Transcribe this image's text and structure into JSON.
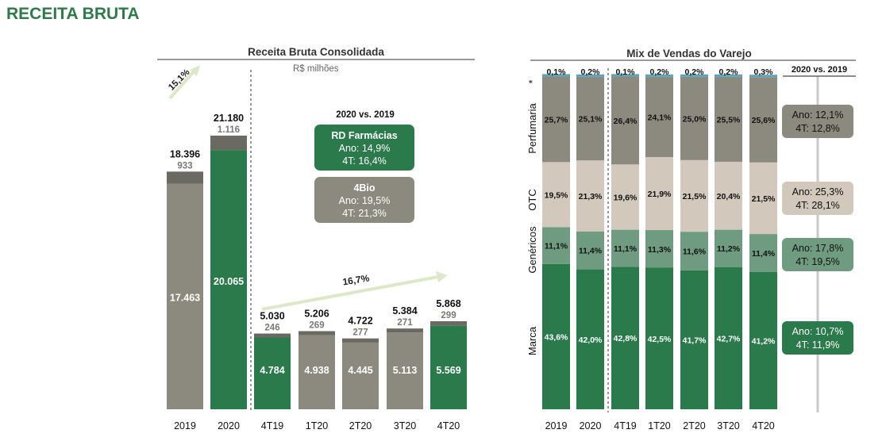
{
  "page": {
    "title": "RECEITA BRUTA"
  },
  "colors": {
    "dark_green": "#2a7a4c",
    "mid_green": "#6f9c80",
    "gray": "#8c8a7f",
    "dark_gray": "#6b6a62",
    "light_beige": "#d2c8bb",
    "arrow": "#dde8c8"
  },
  "chart_data": [
    {
      "type": "bar",
      "title": "Receita Bruta Consolidada",
      "subtitle": "R$ milhões",
      "categories": [
        "2019",
        "2020",
        "4T19",
        "1T20",
        "2T20",
        "3T20",
        "4T20"
      ],
      "series": [
        {
          "name": "RD Farmácias",
          "values": [
            17463,
            20065,
            4784,
            4938,
            4445,
            5113,
            5569
          ]
        },
        {
          "name": "4Bio",
          "values": [
            933,
            1116,
            246,
            269,
            277,
            271,
            299
          ]
        }
      ],
      "value_labels": [
        "17.463",
        "20.065",
        "4.784",
        "4.938",
        "4.445",
        "5.113",
        "5.569"
      ],
      "small_labels": [
        "933",
        "1.116",
        "246",
        "269",
        "277",
        "271",
        "299"
      ],
      "totals": [
        "18.396",
        "21.180",
        "5.030",
        "5.206",
        "4.722",
        "5.384",
        "5.868"
      ],
      "total_values": [
        18396,
        21180,
        5030,
        5206,
        4722,
        5384,
        5868
      ],
      "growth_annual": "15,1%",
      "growth_quarterly": "16,7%",
      "comparison_header": "2020 vs. 2019",
      "boxes": [
        {
          "title": "RD Farmácias",
          "line1": "Ano: 14,9%",
          "line2": "4T: 16,4%"
        },
        {
          "title": "4Bio",
          "line1": "Ano: 19,5%",
          "line2": "4T: 21,3%"
        }
      ]
    },
    {
      "type": "bar",
      "stacked": true,
      "title": "Mix de Vendas do Varejo",
      "categories": [
        "2019",
        "2020",
        "4T19",
        "1T20",
        "2T20",
        "3T20",
        "4T20"
      ],
      "series": [
        {
          "name": "Marca",
          "values": [
            43.6,
            42.0,
            42.8,
            42.5,
            41.7,
            42.7,
            41.2
          ],
          "labels": [
            "43,6%",
            "42,0%",
            "42,8%",
            "42,5%",
            "41,7%",
            "42,7%",
            "41,2%"
          ]
        },
        {
          "name": "Genéricos",
          "values": [
            11.1,
            11.4,
            11.1,
            11.3,
            11.6,
            11.2,
            11.4
          ],
          "labels": [
            "11,1%",
            "11,4%",
            "11,1%",
            "11,3%",
            "11,6%",
            "11,2%",
            "11,4%"
          ]
        },
        {
          "name": "OTC",
          "values": [
            19.5,
            21.3,
            19.6,
            21.9,
            21.5,
            20.4,
            21.5
          ],
          "labels": [
            "19,5%",
            "21,3%",
            "19,6%",
            "21,9%",
            "21,5%",
            "20,4%",
            "21,5%"
          ]
        },
        {
          "name": "Perfumaria",
          "values": [
            25.7,
            25.1,
            26.4,
            24.1,
            25.0,
            25.5,
            25.6
          ],
          "labels": [
            "25,7%",
            "25,1%",
            "26,4%",
            "24,1%",
            "25,0%",
            "25,5%",
            "25,6%"
          ]
        },
        {
          "name": "*",
          "values": [
            0.1,
            0.2,
            0.1,
            0.2,
            0.2,
            0.2,
            0.3
          ],
          "labels": [
            "0,1%",
            "0,2%",
            "0,1%",
            "0,2%",
            "0,2%",
            "0,2%",
            "0,3%"
          ]
        }
      ],
      "comparison_header": "2020 vs. 2019",
      "comparison": [
        {
          "line1": "Ano: 12,1%",
          "line2": "4T: 12,8%"
        },
        {
          "line1": "Ano: 25,3%",
          "line2": "4T: 28,1%"
        },
        {
          "line1": "Ano: 17,8%",
          "line2": "4T: 19,5%"
        },
        {
          "line1": "Ano: 10,7%",
          "line2": "4T: 11,9%"
        }
      ]
    }
  ]
}
